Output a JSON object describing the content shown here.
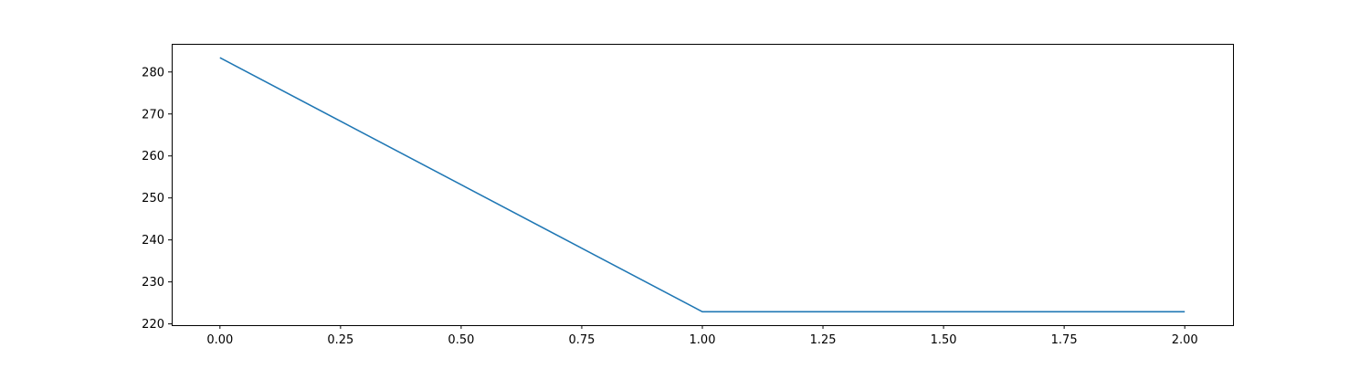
{
  "chart_data": {
    "type": "line",
    "title": "",
    "xlabel": "",
    "ylabel": "",
    "xlim": [
      -0.1,
      2.1
    ],
    "ylim": [
      219.7,
      286.7
    ],
    "x_ticks": [
      0.0,
      0.25,
      0.5,
      0.75,
      1.0,
      1.25,
      1.5,
      1.75,
      2.0
    ],
    "x_tick_labels": [
      "0.00",
      "0.25",
      "0.50",
      "0.75",
      "1.00",
      "1.25",
      "1.50",
      "1.75",
      "2.00"
    ],
    "y_ticks": [
      220,
      230,
      240,
      250,
      260,
      270,
      280
    ],
    "y_tick_labels": [
      "220",
      "230",
      "240",
      "250",
      "260",
      "270",
      "280"
    ],
    "grid": false,
    "legend": "none",
    "series": [
      {
        "x": [
          0.0,
          1.0,
          2.0
        ],
        "y": [
          283.4,
          222.9,
          222.9
        ],
        "color": "#1f77b4"
      }
    ]
  }
}
